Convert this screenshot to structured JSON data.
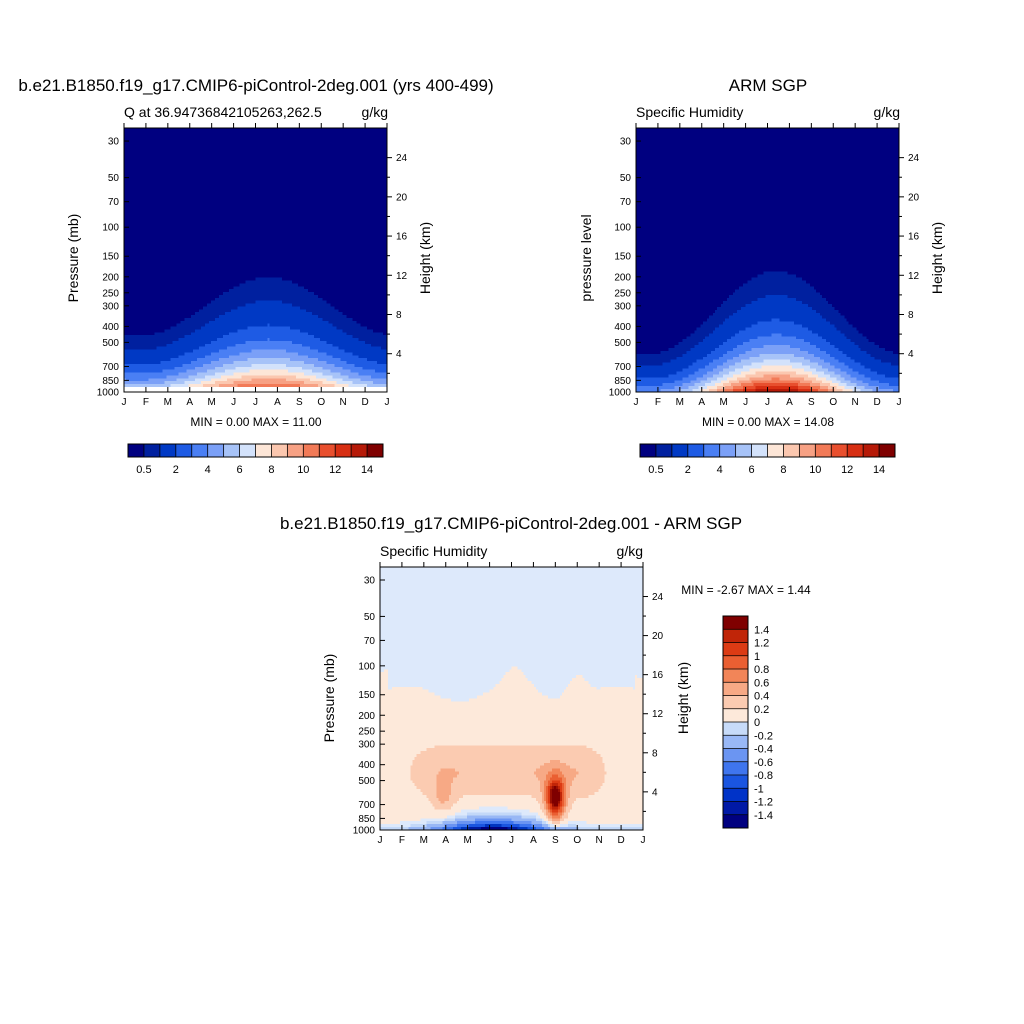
{
  "panel_model": {
    "figure_title": "b.e21.B1850.f19_g17.CMIP6-piControl-2deg.001 (yrs 400-499)",
    "left_title": "Q at 36.94736842105263,262.5",
    "right_title": "g/kg",
    "ylabel_left": "Pressure (mb)",
    "ylabel_right": "Height (km)",
    "min_max": "MIN =   0.00 MAX =  11.00"
  },
  "panel_obs": {
    "figure_title": "ARM SGP",
    "left_title": "Specific Humidity",
    "right_title": "g/kg",
    "ylabel_left": "pressure level",
    "ylabel_right": "Height (km)",
    "min_max": "MIN =   0.00 MAX =  14.08"
  },
  "panel_diff": {
    "figure_title": "b.e21.B1850.f19_g17.CMIP6-piControl-2deg.001 - ARM SGP",
    "left_title": "Specific Humidity",
    "right_title": "g/kg",
    "ylabel_left": "Pressure (mb)",
    "ylabel_right": "Height (km)",
    "min_max": "MIN =  -2.67 MAX =   1.44"
  },
  "axes": {
    "months": [
      "J",
      "F",
      "M",
      "A",
      "M",
      "J",
      "J",
      "A",
      "S",
      "O",
      "N",
      "D",
      "J"
    ],
    "pressure_ticks": [
      "30",
      "50",
      "70",
      "100",
      "150",
      "200",
      "250",
      "300",
      "400",
      "500",
      "700",
      "850",
      "1000"
    ],
    "height_ticks": [
      "4",
      "8",
      "12",
      "16",
      "20",
      "24"
    ]
  },
  "colors": {
    "main": [
      "#000080",
      "#00209f",
      "#0039c4",
      "#1e5be4",
      "#4a7ff4",
      "#7ba0f7",
      "#a7c3f8",
      "#d3e2fb",
      "#fde6d7",
      "#fbc7af",
      "#f7a184",
      "#f27a57",
      "#e84f2e",
      "#d72f13",
      "#b61a08",
      "#7f0000"
    ],
    "diff": [
      "#000080",
      "#001aa0",
      "#0035c0",
      "#1a55e0",
      "#3d74ee",
      "#6a94f2",
      "#98b7f5",
      "#c3d8f8",
      "#dde9fb",
      "#fde9da",
      "#fbcbb1",
      "#f7a985",
      "#f28558",
      "#ea5f32",
      "#dc3b14",
      "#c02508",
      "#9a1003",
      "#7f0000"
    ]
  },
  "colorbar_main": {
    "labels": [
      "0.5",
      "2",
      "4",
      "6",
      "8",
      "10",
      "12",
      "14"
    ]
  },
  "colorbar_diff": {
    "labels": [
      "1.4",
      "1.2",
      "1",
      "0.8",
      "0.6",
      "0.4",
      "0.2",
      "0",
      "-0.2",
      "-0.4",
      "-0.6",
      "-0.8",
      "-1",
      "-1.2",
      "-1.4"
    ]
  },
  "chart_data": [
    {
      "type": "heatmap",
      "title": "Q at 36.94736842105263,262.5",
      "units": "g/kg",
      "ylabel": "Pressure (mb)",
      "ylabel_right": "Height (km)",
      "x": [
        "J",
        "F",
        "M",
        "A",
        "M",
        "J",
        "J",
        "A",
        "S",
        "O",
        "N",
        "D",
        "J"
      ],
      "y_pressure": [
        30,
        50,
        70,
        100,
        150,
        200,
        250,
        300,
        400,
        500,
        700,
        850,
        1000
      ],
      "ylim": [
        1000,
        25
      ],
      "min": 0.0,
      "max": 11.0,
      "description": "Moisture increases toward the surface; maximum near 900-1000 mb in July-August",
      "profile_surface_by_month": [
        6,
        6.5,
        7,
        8,
        9,
        10.5,
        11,
        10.5,
        9,
        8,
        7,
        6.5,
        6
      ]
    },
    {
      "type": "heatmap",
      "title": "Specific Humidity",
      "units": "g/kg",
      "ylabel": "pressure level",
      "ylabel_right": "Height (km)",
      "x": [
        "J",
        "F",
        "M",
        "A",
        "M",
        "J",
        "J",
        "A",
        "S",
        "O",
        "N",
        "D",
        "J"
      ],
      "y_pressure": [
        30,
        50,
        70,
        100,
        150,
        200,
        250,
        300,
        400,
        500,
        700,
        850,
        1000
      ],
      "ylim": [
        1000,
        25
      ],
      "min": 0.0,
      "max": 14.08,
      "profile_surface_by_month": [
        4,
        5,
        6.5,
        8.5,
        11,
        13,
        14,
        13.5,
        11.5,
        8.5,
        6,
        4.5,
        4
      ]
    },
    {
      "type": "heatmap",
      "title": "Specific Humidity",
      "units": "g/kg",
      "ylabel": "Pressure (mb)",
      "ylabel_right": "Height (km)",
      "x": [
        "J",
        "F",
        "M",
        "A",
        "M",
        "J",
        "J",
        "A",
        "S",
        "O",
        "N",
        "D",
        "J"
      ],
      "y_pressure": [
        30,
        50,
        70,
        100,
        150,
        200,
        250,
        300,
        400,
        500,
        700,
        850,
        1000
      ],
      "ylim": [
        1000,
        25
      ],
      "min": -2.67,
      "max": 1.44,
      "description": "Slightly positive (0 to 0.4) above ~600 mb, strongly negative (-1.4) near surface May-August, positive maximum (~1.4) at ~700 mb in September"
    }
  ]
}
